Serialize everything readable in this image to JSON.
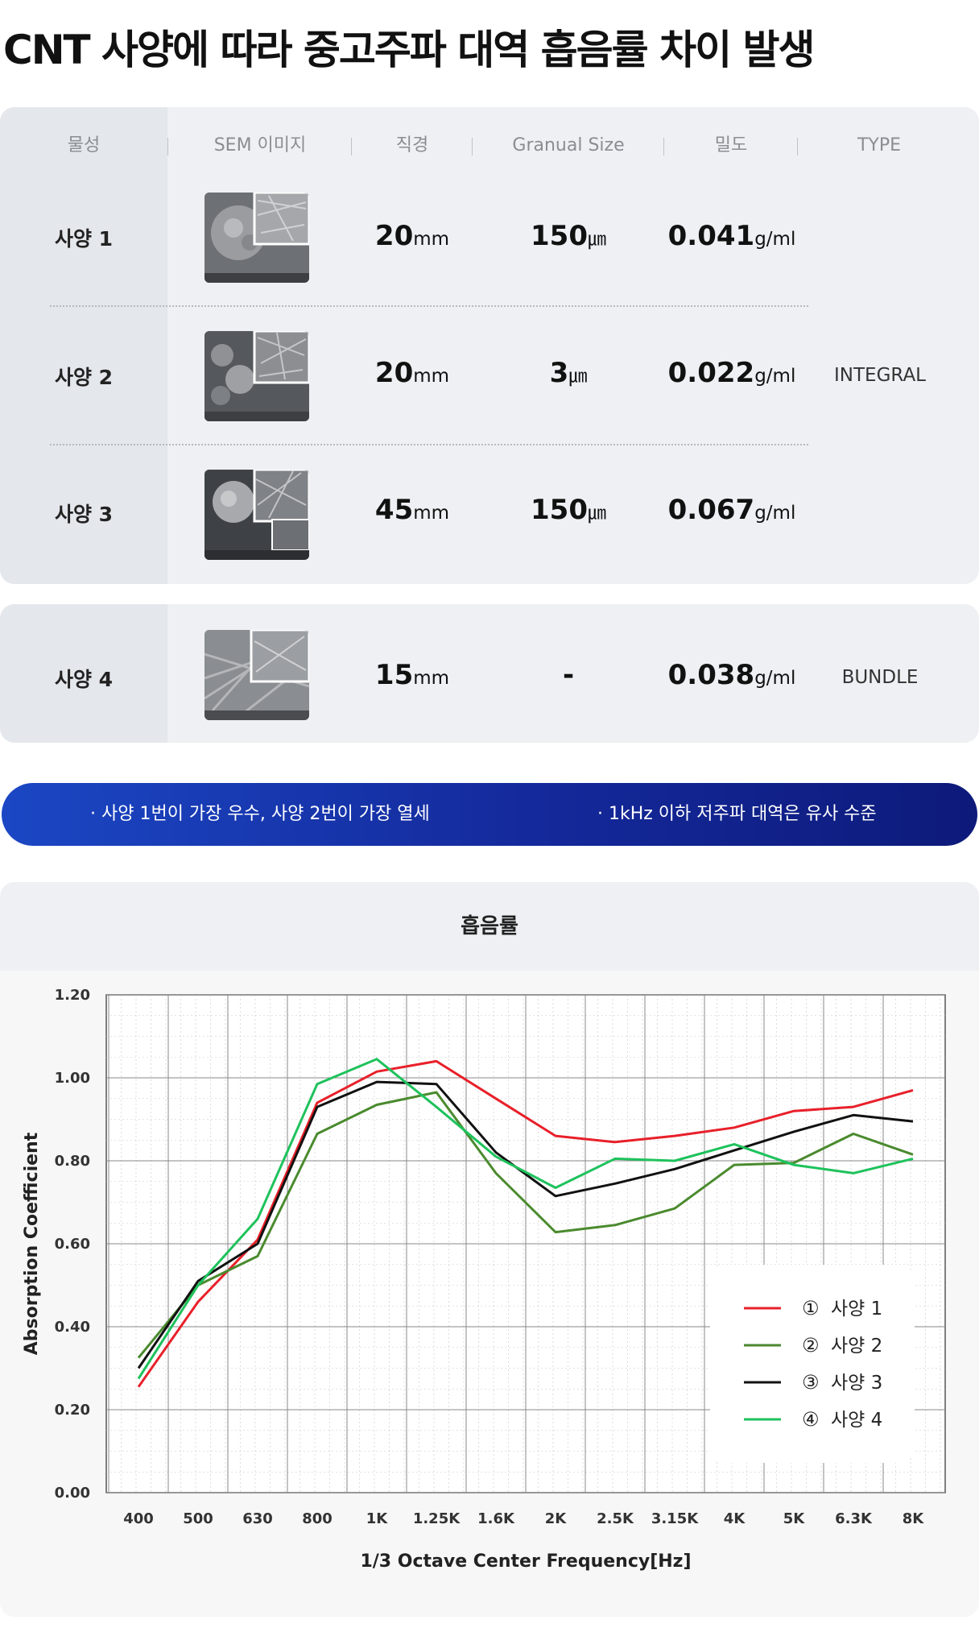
{
  "page_title": "CNT 사양에 따라 중고주파 대역 흡음률 차이 발생",
  "table": {
    "headers": [
      "물성",
      "SEM 이미지",
      "직경",
      "Granual Size",
      "밀도",
      "TYPE"
    ],
    "rows": [
      {
        "label": "사양 1",
        "diameter": "20",
        "diameter_unit": "mm",
        "granual": "150",
        "granual_unit": "㎛",
        "density": "0.041",
        "density_unit": "g/ml"
      },
      {
        "label": "사양 2",
        "diameter": "20",
        "diameter_unit": "mm",
        "granual": "3",
        "granual_unit": "㎛",
        "density": "0.022",
        "density_unit": "g/ml"
      },
      {
        "label": "사양 3",
        "diameter": "45",
        "diameter_unit": "mm",
        "granual": "150",
        "granual_unit": "㎛",
        "density": "0.067",
        "density_unit": "g/ml"
      },
      {
        "label": "사양 4",
        "diameter": "15",
        "diameter_unit": "mm",
        "granual": "-",
        "granual_unit": "",
        "density": "0.038",
        "density_unit": "g/ml"
      }
    ],
    "type_integral": "INTEGRAL",
    "type_bundle": "BUNDLE"
  },
  "banner": {
    "left": "· 사양 1번이 가장 우수, 사양 2번이 가장 열세",
    "right": "· 1kHz 이하 저주파 대역은 유사 수준"
  },
  "chart_section_title": "흡음률",
  "chart_data": {
    "type": "line",
    "xlabel": "1/3 Octave Center Frequency[Hz]",
    "ylabel": "Absorption Coefficient",
    "categories": [
      "400",
      "500",
      "630",
      "800",
      "1K",
      "1.25K",
      "1.6K",
      "2K",
      "2.5K",
      "3.15K",
      "4K",
      "5K",
      "6.3K",
      "8K"
    ],
    "ylim": [
      0,
      1.2
    ],
    "yticks": [
      "0.00",
      "0.20",
      "0.40",
      "0.60",
      "0.80",
      "1.00",
      "1.20"
    ],
    "grid": true,
    "legend_position": "bottom-right",
    "series": [
      {
        "marker": "①",
        "name": "사양 1",
        "color": "#e8202a",
        "values": [
          0.255,
          0.46,
          0.61,
          0.94,
          1.015,
          1.04,
          0.95,
          0.86,
          0.845,
          0.86,
          0.88,
          0.92,
          0.93,
          0.97
        ]
      },
      {
        "marker": "②",
        "name": "사양 2",
        "color": "#4a8a2e",
        "values": [
          0.325,
          0.5,
          0.57,
          0.865,
          0.935,
          0.965,
          0.77,
          0.628,
          0.645,
          0.685,
          0.79,
          0.795,
          0.865,
          0.815
        ]
      },
      {
        "marker": "③",
        "name": "사양 3",
        "color": "#111111",
        "values": [
          0.3,
          0.51,
          0.6,
          0.93,
          0.99,
          0.985,
          0.82,
          0.715,
          0.745,
          0.78,
          0.825,
          0.87,
          0.91,
          0.895
        ]
      },
      {
        "marker": "④",
        "name": "사양 4",
        "color": "#1ec25c",
        "values": [
          0.275,
          0.5,
          0.66,
          0.985,
          1.045,
          0.93,
          0.81,
          0.735,
          0.805,
          0.8,
          0.84,
          0.79,
          0.77,
          0.805
        ]
      }
    ]
  }
}
